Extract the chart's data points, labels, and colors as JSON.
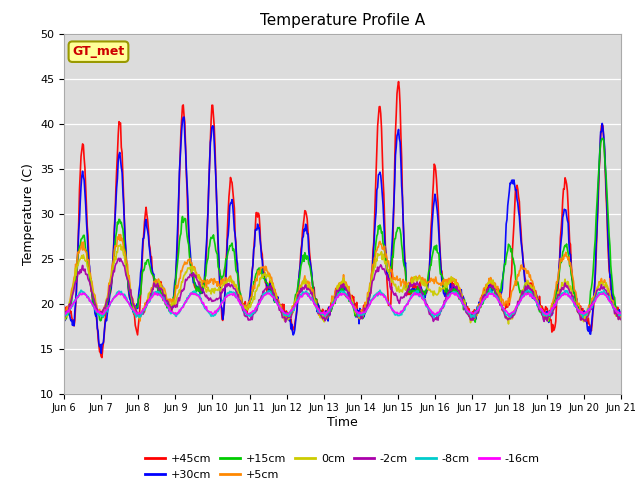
{
  "title": "Temperature Profile A",
  "xlabel": "Time",
  "ylabel": "Temperature (C)",
  "ylim": [
    10,
    50
  ],
  "xlim_days": [
    0,
    15
  ],
  "plot_bg_color": "#dcdcdc",
  "fig_bg_color": "#ffffff",
  "legend_label": "GT_met",
  "legend_box_facecolor": "#ffff99",
  "legend_box_edgecolor": "#999900",
  "series": [
    {
      "label": "+45cm",
      "color": "#ff0000",
      "lw": 1.2
    },
    {
      "label": "+30cm",
      "color": "#0000ff",
      "lw": 1.2
    },
    {
      "label": "+15cm",
      "color": "#00cc00",
      "lw": 1.2
    },
    {
      "label": "+5cm",
      "color": "#ff8800",
      "lw": 1.2
    },
    {
      "label": "0cm",
      "color": "#cccc00",
      "lw": 1.2
    },
    {
      "label": "-2cm",
      "color": "#aa00aa",
      "lw": 1.2
    },
    {
      "label": "-8cm",
      "color": "#00cccc",
      "lw": 1.2
    },
    {
      "label": "-16cm",
      "color": "#ff00ff",
      "lw": 1.2
    }
  ],
  "tick_labels": [
    "Jun 6",
    "Jun 7",
    "Jun 8",
    "Jun 9",
    "Jun 10",
    "Jun 11",
    "Jun 12",
    "Jun 13",
    "Jun 14",
    "Jun 15",
    "Jun 16",
    "Jun 17",
    "Jun 18",
    "Jun 19",
    "Jun 20",
    "Jun 21"
  ],
  "yticks": [
    10,
    15,
    20,
    25,
    30,
    35,
    40,
    45,
    50
  ],
  "legend_ncol_row1": 6,
  "legend_ncol_row2": 2
}
